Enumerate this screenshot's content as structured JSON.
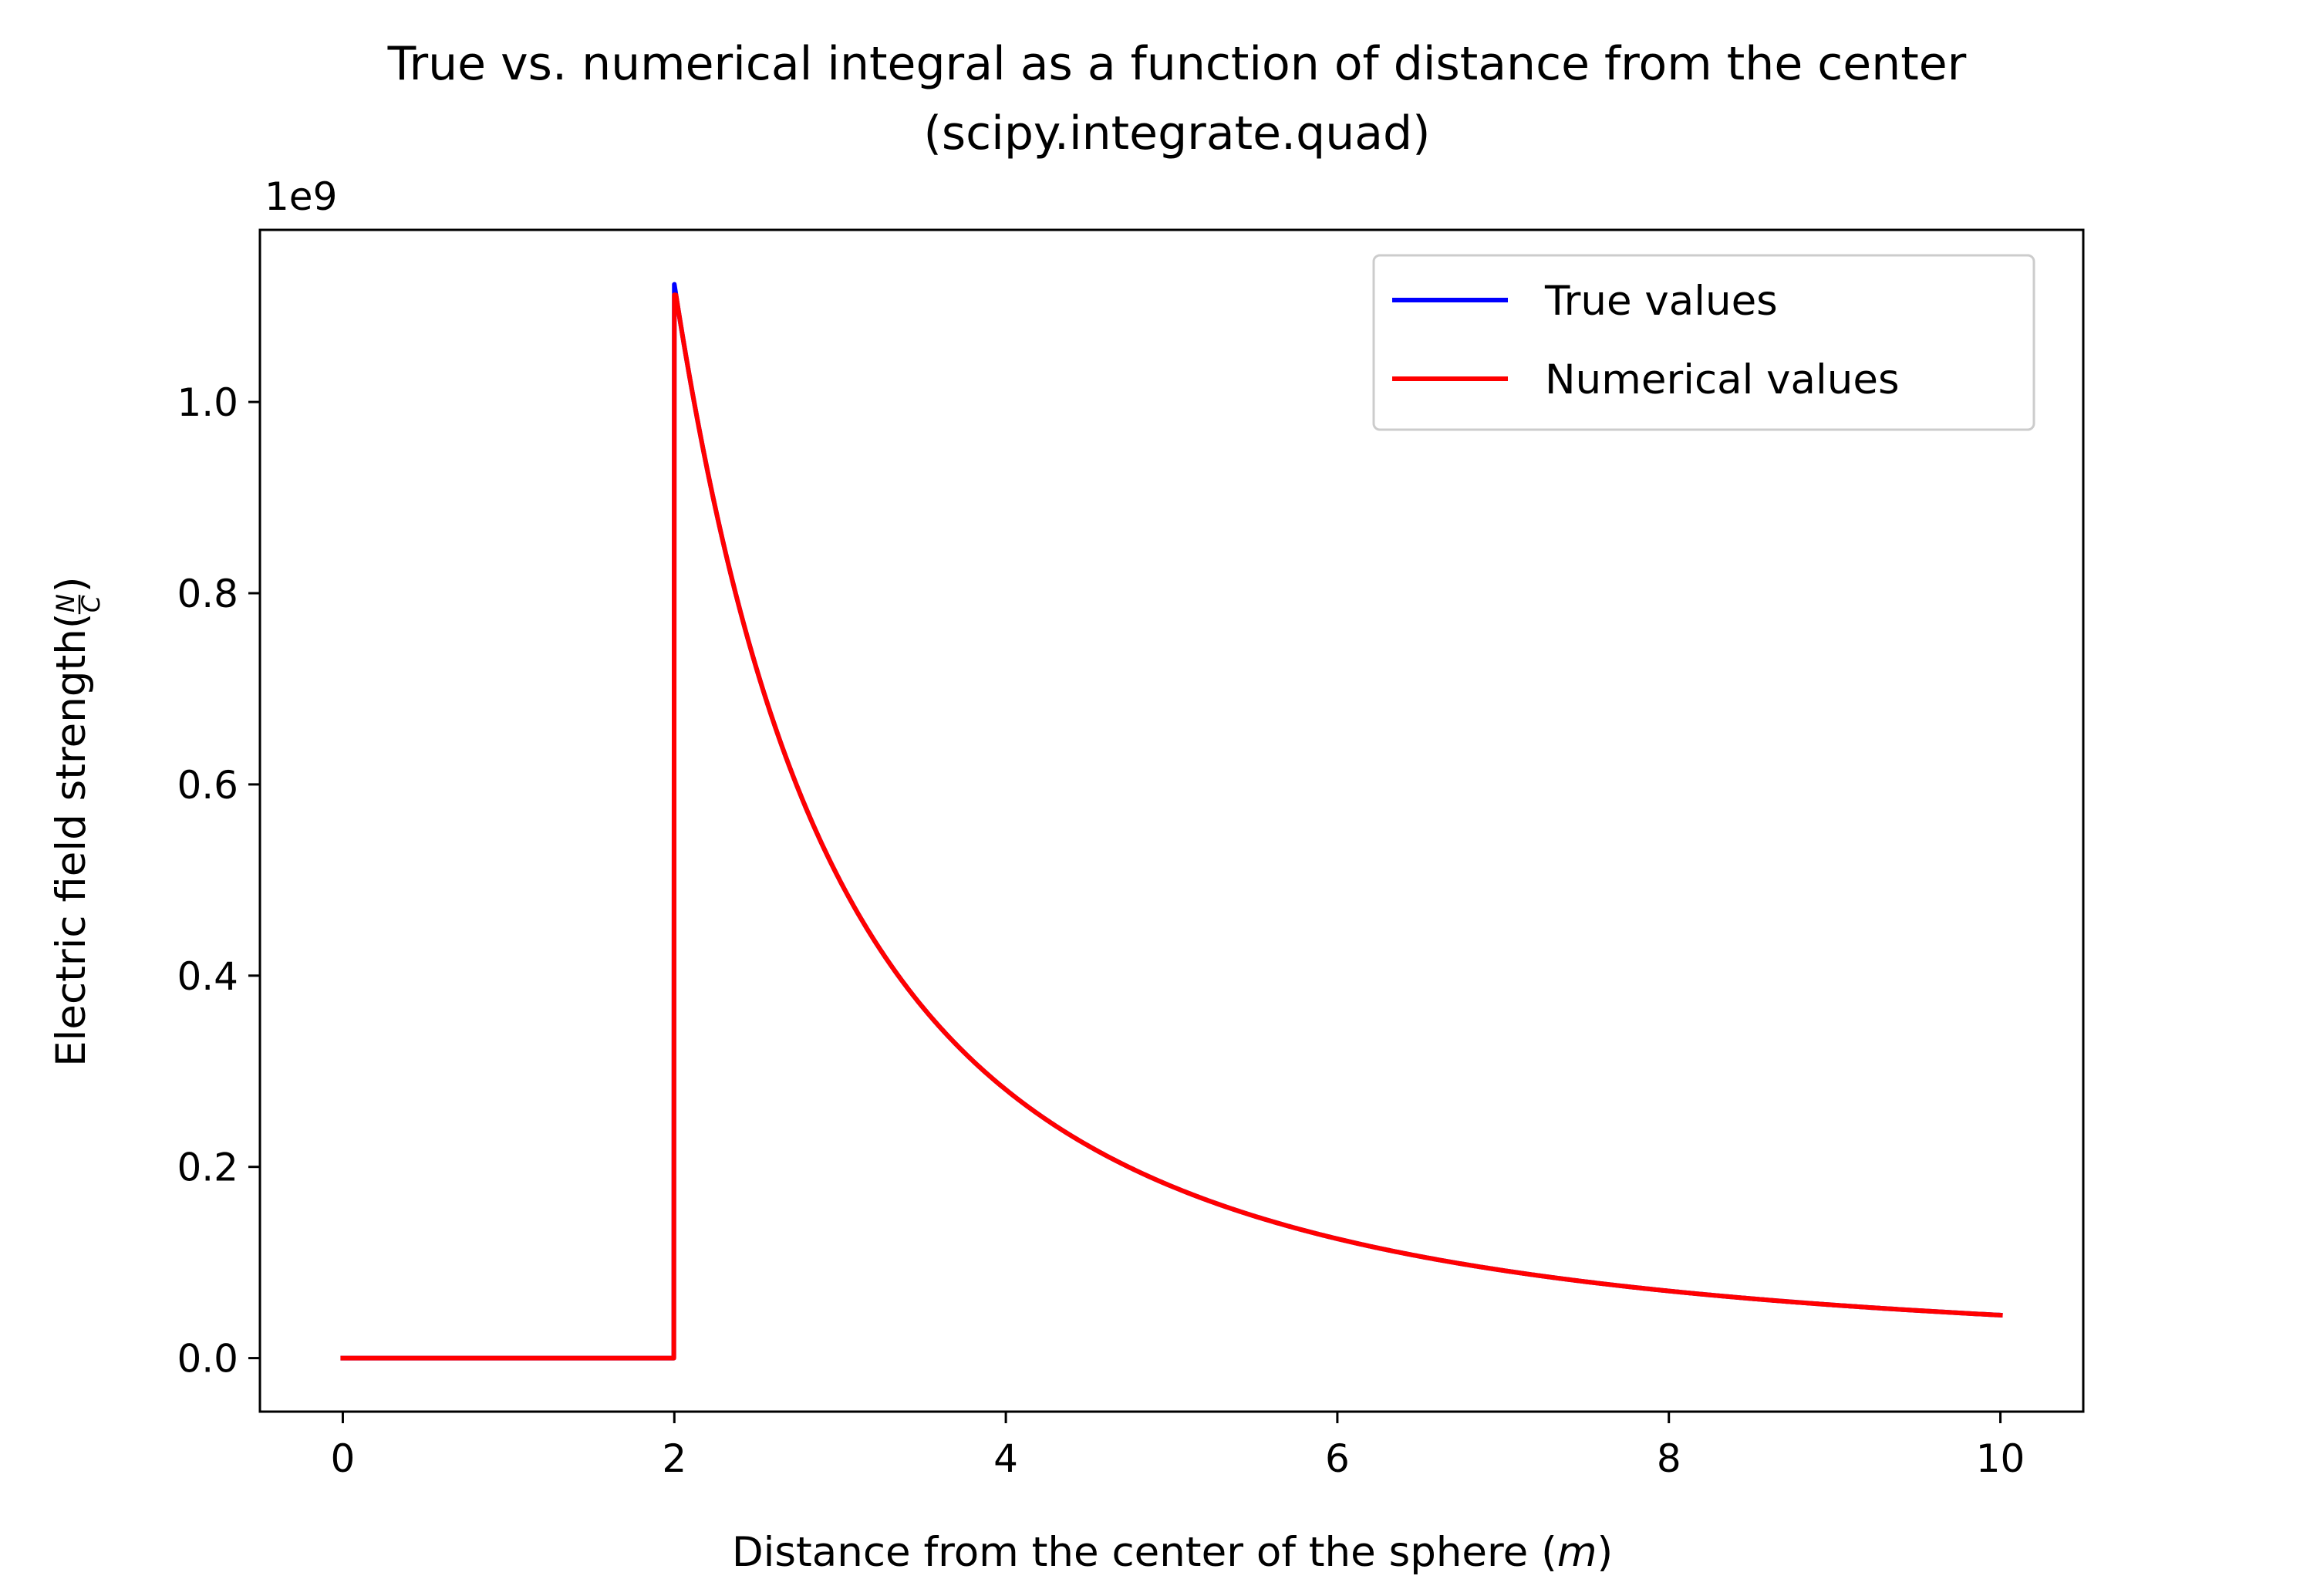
{
  "chart_data": {
    "type": "line",
    "title": "True vs. numerical integral as a function of distance from the center",
    "subtitle": "(scipy.integrate.quad)",
    "xlabel": "Distance from the center of the sphere ",
    "xlabel_unit": "m",
    "ylabel": "Electric field strength ",
    "ylabel_unit_num": "N",
    "ylabel_unit_den": "C",
    "y_offset_label": "1e9",
    "xlim": [
      -0.5,
      10.5
    ],
    "ylim": [
      -0.056,
      1.18
    ],
    "xticks": [
      0,
      2,
      4,
      6,
      8,
      10
    ],
    "xtick_labels": [
      "0",
      "2",
      "4",
      "6",
      "8",
      "10"
    ],
    "yticks": [
      0.0,
      0.2,
      0.4,
      0.6,
      0.8,
      1.0
    ],
    "ytick_labels": [
      "0.0",
      "0.2",
      "0.4",
      "0.6",
      "0.8",
      "1.0"
    ],
    "legend_placement": "top-right",
    "grid": false,
    "sphere_radius": 2,
    "peak_value": 1.123,
    "x": [
      0,
      0.5,
      1,
      1.5,
      1.98,
      2,
      2.02,
      2.25,
      2.5,
      2.75,
      3,
      3.5,
      4,
      4.5,
      5,
      5.5,
      6,
      6.5,
      7,
      7.5,
      8,
      8.5,
      9,
      9.5,
      10
    ],
    "series": [
      {
        "name": "True values",
        "color": "#0000ff",
        "values": [
          0,
          0,
          0,
          0,
          0,
          1.123,
          1.101,
          0.887,
          0.719,
          0.594,
          0.499,
          0.367,
          0.281,
          0.222,
          0.18,
          0.149,
          0.125,
          0.106,
          0.092,
          0.08,
          0.07,
          0.062,
          0.055,
          0.05,
          0.045
        ]
      },
      {
        "name": "Numerical values",
        "color": "#ff0000",
        "values": [
          0,
          0,
          0,
          0,
          0,
          1.112,
          1.101,
          0.887,
          0.719,
          0.594,
          0.499,
          0.367,
          0.281,
          0.222,
          0.18,
          0.149,
          0.125,
          0.106,
          0.092,
          0.08,
          0.07,
          0.062,
          0.055,
          0.05,
          0.045
        ]
      }
    ]
  }
}
